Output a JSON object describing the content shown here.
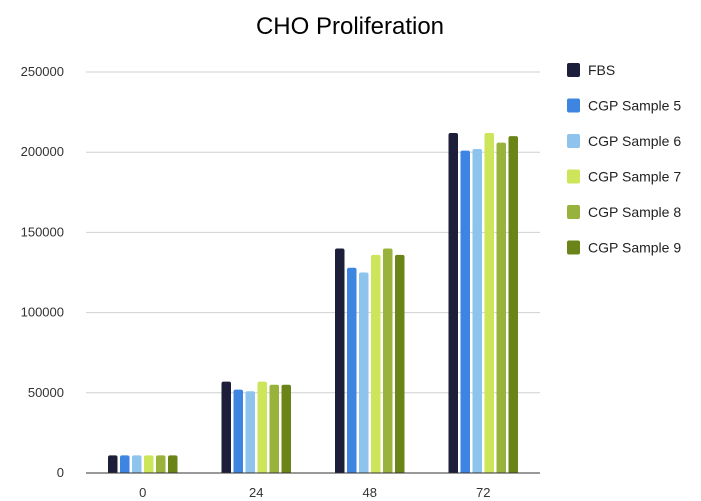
{
  "chart_data": {
    "type": "bar",
    "title": "CHO Proliferation",
    "xlabel": "",
    "ylabel": "",
    "categories": [
      "0",
      "24",
      "48",
      "72"
    ],
    "ylim": [
      0,
      250000
    ],
    "yticks": [
      "0",
      "50000",
      "100000",
      "150000",
      "200000",
      "250000"
    ],
    "grid": true,
    "legend": "right",
    "series": [
      {
        "name": "FBS",
        "color": "#1c1e3a",
        "values": [
          11000,
          57000,
          140000,
          212000
        ]
      },
      {
        "name": "CGP Sample 5",
        "color": "#3d85e0",
        "values": [
          11000,
          52000,
          128000,
          201000
        ]
      },
      {
        "name": "CGP Sample 6",
        "color": "#8ec3ee",
        "values": [
          11000,
          51000,
          125000,
          202000
        ]
      },
      {
        "name": "CGP Sample 7",
        "color": "#cde55a",
        "values": [
          11000,
          57000,
          136000,
          212000
        ]
      },
      {
        "name": "CGP Sample 8",
        "color": "#98b23c",
        "values": [
          11000,
          55000,
          140000,
          206000
        ]
      },
      {
        "name": "CGP Sample 9",
        "color": "#6b8418",
        "values": [
          11000,
          55000,
          136000,
          210000
        ]
      }
    ]
  }
}
